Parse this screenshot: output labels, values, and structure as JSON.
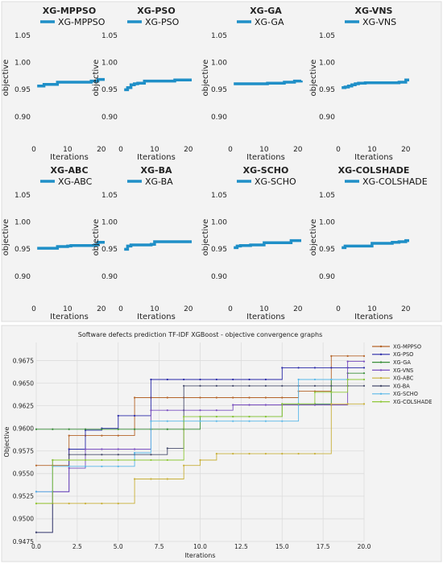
{
  "chart_data": [
    {
      "type": "line",
      "title": "XG-MPPSO",
      "xlabel": "Iterations",
      "ylabel": "objective",
      "xlim": [
        0,
        21
      ],
      "ylim": [
        0.85,
        1.07
      ],
      "xticks": [
        "0",
        "10",
        "20"
      ],
      "yticks": [
        "1.05",
        "1.00",
        "0.95",
        "0.90"
      ],
      "series": [
        {
          "name": "XG-MPPSO",
          "color": "#1f8fc7",
          "x": [
            1,
            2,
            3,
            4,
            5,
            6,
            7,
            8,
            9,
            10,
            11,
            12,
            13,
            14,
            15,
            16,
            17,
            18,
            19,
            20,
            21
          ],
          "y": [
            0.956,
            0.956,
            0.959,
            0.959,
            0.959,
            0.959,
            0.963,
            0.963,
            0.963,
            0.963,
            0.963,
            0.963,
            0.963,
            0.963,
            0.963,
            0.963,
            0.965,
            0.965,
            0.968,
            0.968,
            0.968
          ]
        }
      ]
    },
    {
      "type": "line",
      "title": "XG-PSO",
      "xlabel": "Iterations",
      "ylabel": "objective",
      "xlim": [
        0,
        21
      ],
      "ylim": [
        0.85,
        1.07
      ],
      "xticks": [
        "0",
        "10",
        "20"
      ],
      "yticks": [
        "1.05",
        "1.00",
        "0.95",
        "0.90"
      ],
      "series": [
        {
          "name": "XG-PSO",
          "color": "#1f8fc7",
          "x": [
            1,
            2,
            3,
            4,
            5,
            6,
            7,
            8,
            9,
            10,
            11,
            12,
            13,
            14,
            15,
            16,
            17,
            18,
            19,
            20,
            21
          ],
          "y": [
            0.949,
            0.953,
            0.958,
            0.96,
            0.961,
            0.961,
            0.965,
            0.965,
            0.965,
            0.965,
            0.965,
            0.965,
            0.965,
            0.965,
            0.965,
            0.967,
            0.967,
            0.967,
            0.967,
            0.967,
            0.967
          ]
        }
      ]
    },
    {
      "type": "line",
      "title": "XG-GA",
      "xlabel": "Iterations",
      "ylabel": "objective",
      "xlim": [
        0,
        21
      ],
      "ylim": [
        0.85,
        1.07
      ],
      "xticks": [
        "0",
        "10",
        "20"
      ],
      "yticks": [
        "1.05",
        "1.00",
        "0.95",
        "0.90"
      ],
      "series": [
        {
          "name": "XG-GA",
          "color": "#1f8fc7",
          "x": [
            1,
            2,
            3,
            4,
            5,
            6,
            7,
            8,
            9,
            10,
            11,
            12,
            13,
            14,
            15,
            16,
            17,
            18,
            19,
            20,
            21
          ],
          "y": [
            0.96,
            0.96,
            0.96,
            0.96,
            0.96,
            0.96,
            0.96,
            0.96,
            0.96,
            0.96,
            0.961,
            0.961,
            0.961,
            0.961,
            0.961,
            0.963,
            0.963,
            0.963,
            0.965,
            0.965,
            0.966
          ]
        }
      ]
    },
    {
      "type": "line",
      "title": "XG-VNS",
      "xlabel": "Iterations",
      "ylabel": "objective",
      "xlim": [
        0,
        21
      ],
      "ylim": [
        0.85,
        1.07
      ],
      "xticks": [
        "0",
        "10",
        "20"
      ],
      "yticks": [
        "1.05",
        "1.00",
        "0.95",
        "0.90"
      ],
      "series": [
        {
          "name": "XG-VNS",
          "color": "#1f8fc7",
          "x": [
            1,
            2,
            3,
            4,
            5,
            6,
            7,
            8,
            9,
            10,
            11,
            12,
            13,
            14,
            15,
            16,
            17,
            18,
            19,
            20,
            21
          ],
          "y": [
            0.953,
            0.954,
            0.956,
            0.958,
            0.96,
            0.961,
            0.961,
            0.962,
            0.962,
            0.962,
            0.962,
            0.962,
            0.962,
            0.962,
            0.962,
            0.962,
            0.962,
            0.963,
            0.963,
            0.967,
            0.967
          ]
        }
      ]
    },
    {
      "type": "line",
      "title": "XG-ABC",
      "xlabel": "Iterations",
      "ylabel": "objective",
      "xlim": [
        0,
        21
      ],
      "ylim": [
        0.85,
        1.07
      ],
      "xticks": [
        "0",
        "10",
        "20"
      ],
      "yticks": [
        "1.05",
        "1.00",
        "0.95",
        "0.90"
      ],
      "series": [
        {
          "name": "XG-ABC",
          "color": "#1f8fc7",
          "x": [
            1,
            2,
            3,
            4,
            5,
            6,
            7,
            8,
            9,
            10,
            11,
            12,
            13,
            14,
            15,
            16,
            17,
            18,
            19,
            20,
            21
          ],
          "y": [
            0.951,
            0.951,
            0.951,
            0.951,
            0.951,
            0.951,
            0.954,
            0.954,
            0.954,
            0.955,
            0.956,
            0.956,
            0.956,
            0.956,
            0.956,
            0.956,
            0.956,
            0.957,
            0.962,
            0.962,
            0.962
          ]
        }
      ]
    },
    {
      "type": "line",
      "title": "XG-BA",
      "xlabel": "Iterations",
      "ylabel": "objective",
      "xlim": [
        0,
        21
      ],
      "ylim": [
        0.85,
        1.07
      ],
      "xticks": [
        "0",
        "10",
        "20"
      ],
      "yticks": [
        "1.05",
        "1.00",
        "0.95",
        "0.90"
      ],
      "series": [
        {
          "name": "XG-BA",
          "color": "#1f8fc7",
          "x": [
            1,
            2,
            3,
            4,
            5,
            6,
            7,
            8,
            9,
            10,
            11,
            12,
            13,
            14,
            15,
            16,
            17,
            18,
            19,
            20,
            21
          ],
          "y": [
            0.949,
            0.955,
            0.957,
            0.957,
            0.957,
            0.957,
            0.957,
            0.957,
            0.958,
            0.963,
            0.963,
            0.963,
            0.963,
            0.963,
            0.963,
            0.963,
            0.963,
            0.963,
            0.963,
            0.963,
            0.963
          ]
        }
      ]
    },
    {
      "type": "line",
      "title": "XG-SCHO",
      "xlabel": "Iterations",
      "ylabel": "objective",
      "xlim": [
        0,
        21
      ],
      "ylim": [
        0.85,
        1.07
      ],
      "xticks": [
        "0",
        "10",
        "20"
      ],
      "yticks": [
        "1.05",
        "1.00",
        "0.95",
        "0.90"
      ],
      "series": [
        {
          "name": "XG-SCHO",
          "color": "#1f8fc7",
          "x": [
            1,
            2,
            3,
            4,
            5,
            6,
            7,
            8,
            9,
            10,
            11,
            12,
            13,
            14,
            15,
            16,
            17,
            18,
            19,
            20,
            21
          ],
          "y": [
            0.952,
            0.955,
            0.956,
            0.956,
            0.956,
            0.957,
            0.957,
            0.957,
            0.957,
            0.961,
            0.961,
            0.961,
            0.961,
            0.961,
            0.961,
            0.961,
            0.961,
            0.965,
            0.965,
            0.965,
            0.965
          ]
        }
      ]
    },
    {
      "type": "line",
      "title": "XG-COLSHADE",
      "xlabel": "Iterations",
      "ylabel": "objective",
      "xlim": [
        0,
        21
      ],
      "ylim": [
        0.85,
        1.07
      ],
      "xticks": [
        "0",
        "10",
        "20"
      ],
      "yticks": [
        "1.05",
        "1.00",
        "0.95",
        "0.90"
      ],
      "series": [
        {
          "name": "XG-COLSHADE",
          "color": "#1f8fc7",
          "x": [
            1,
            2,
            3,
            4,
            5,
            6,
            7,
            8,
            9,
            10,
            11,
            12,
            13,
            14,
            15,
            16,
            17,
            18,
            19,
            20,
            21
          ],
          "y": [
            0.952,
            0.955,
            0.955,
            0.955,
            0.955,
            0.955,
            0.955,
            0.955,
            0.955,
            0.96,
            0.96,
            0.96,
            0.96,
            0.96,
            0.96,
            0.962,
            0.962,
            0.963,
            0.963,
            0.965,
            0.965
          ]
        }
      ]
    },
    {
      "type": "line",
      "title": "Software defects prediction TF-IDF XGBoost -  objective convergence graphs",
      "xlabel": "Iterations",
      "ylabel": "Objective",
      "xlim": [
        0,
        20
      ],
      "ylim": [
        0.9475,
        0.9695
      ],
      "xticks": [
        "0.0",
        "2.5",
        "5.0",
        "7.5",
        "10.0",
        "12.5",
        "15.0",
        "17.5",
        "20.0"
      ],
      "yticks": [
        "0.9675",
        "0.9650",
        "0.9625",
        "0.9600",
        "0.9575",
        "0.9550",
        "0.9525",
        "0.9500",
        "0.9475"
      ],
      "grid": true,
      "legend": "right",
      "series": [
        {
          "name": "XG-MPPSO",
          "color": "#b5652a",
          "x": [
            0,
            1,
            2,
            3,
            4,
            5,
            6,
            7,
            8,
            9,
            10,
            11,
            12,
            13,
            14,
            15,
            16,
            17,
            18,
            19,
            20
          ],
          "y": [
            0.9559,
            0.9559,
            0.9592,
            0.9592,
            0.9592,
            0.9592,
            0.9634,
            0.9634,
            0.9634,
            0.9634,
            0.9634,
            0.9634,
            0.9634,
            0.9634,
            0.9634,
            0.9634,
            0.9641,
            0.9641,
            0.968,
            0.968,
            0.968
          ]
        },
        {
          "name": "XG-PSO",
          "color": "#2a2aa8",
          "x": [
            0,
            1,
            2,
            3,
            4,
            5,
            6,
            7,
            8,
            9,
            10,
            11,
            12,
            13,
            14,
            15,
            16,
            17,
            18,
            19,
            20
          ],
          "y": [
            0.9485,
            0.953,
            0.9577,
            0.9598,
            0.96,
            0.9614,
            0.9614,
            0.9654,
            0.9654,
            0.9654,
            0.9654,
            0.9654,
            0.9654,
            0.9654,
            0.9654,
            0.9667,
            0.9667,
            0.9667,
            0.9667,
            0.9667,
            0.9667
          ]
        },
        {
          "name": "XG-GA",
          "color": "#3a8f3a",
          "x": [
            0,
            1,
            2,
            3,
            4,
            5,
            6,
            7,
            8,
            9,
            10,
            11,
            12,
            13,
            14,
            15,
            16,
            17,
            18,
            19,
            20
          ],
          "y": [
            0.9599,
            0.9599,
            0.9599,
            0.9599,
            0.9599,
            0.9599,
            0.9599,
            0.9599,
            0.9599,
            0.9599,
            0.9613,
            0.9613,
            0.9613,
            0.9613,
            0.9613,
            0.9627,
            0.9627,
            0.9627,
            0.9654,
            0.9661,
            0.9661
          ]
        },
        {
          "name": "XG-VNS",
          "color": "#7a4fc0",
          "x": [
            0,
            1,
            2,
            3,
            4,
            5,
            6,
            7,
            8,
            9,
            10,
            11,
            12,
            13,
            14,
            15,
            16,
            17,
            18,
            19,
            20
          ],
          "y": [
            0.953,
            0.953,
            0.9556,
            0.9577,
            0.9577,
            0.9577,
            0.9577,
            0.962,
            0.962,
            0.962,
            0.962,
            0.962,
            0.9626,
            0.9626,
            0.9626,
            0.9626,
            0.9626,
            0.9626,
            0.9626,
            0.9674,
            0.9674
          ]
        },
        {
          "name": "XG-ABC",
          "color": "#c8b03a",
          "x": [
            0,
            1,
            2,
            3,
            4,
            5,
            6,
            7,
            8,
            9,
            10,
            11,
            12,
            13,
            14,
            15,
            16,
            17,
            18,
            19,
            20
          ],
          "y": [
            0.9517,
            0.9517,
            0.9517,
            0.9517,
            0.9517,
            0.9517,
            0.9544,
            0.9544,
            0.9544,
            0.9559,
            0.9565,
            0.9572,
            0.9572,
            0.9572,
            0.9572,
            0.9572,
            0.9572,
            0.9572,
            0.9627,
            0.9627,
            0.9627
          ]
        },
        {
          "name": "XG-BA",
          "color": "#4a4f6e",
          "x": [
            0,
            1,
            2,
            3,
            4,
            5,
            6,
            7,
            8,
            9,
            10,
            11,
            12,
            13,
            14,
            15,
            16,
            17,
            18,
            19,
            20
          ],
          "y": [
            0.9485,
            0.9565,
            0.9571,
            0.9571,
            0.9571,
            0.9571,
            0.9571,
            0.9571,
            0.9578,
            0.9647,
            0.9647,
            0.9647,
            0.9647,
            0.9647,
            0.9647,
            0.9647,
            0.9647,
            0.9647,
            0.9647,
            0.9647,
            0.9647
          ]
        },
        {
          "name": "XG-SCHO",
          "color": "#5ab8e8",
          "x": [
            0,
            1,
            2,
            3,
            4,
            5,
            6,
            7,
            8,
            9,
            10,
            11,
            12,
            13,
            14,
            15,
            16,
            17,
            18,
            19,
            20
          ],
          "y": [
            0.953,
            0.9558,
            0.9558,
            0.9558,
            0.9558,
            0.9558,
            0.9573,
            0.9608,
            0.9608,
            0.9608,
            0.9608,
            0.9608,
            0.9608,
            0.9608,
            0.9608,
            0.9608,
            0.9654,
            0.9654,
            0.9654,
            0.9654,
            0.9654
          ]
        },
        {
          "name": "XG-COLSHADE",
          "color": "#8fc83a",
          "x": [
            0,
            1,
            2,
            3,
            4,
            5,
            6,
            7,
            8,
            9,
            10,
            11,
            12,
            13,
            14,
            15,
            16,
            17,
            18,
            19,
            20
          ],
          "y": [
            0.9517,
            0.9565,
            0.9565,
            0.9565,
            0.9565,
            0.9565,
            0.9565,
            0.9565,
            0.9565,
            0.9613,
            0.9613,
            0.9613,
            0.9613,
            0.9613,
            0.9613,
            0.9627,
            0.9627,
            0.964,
            0.964,
            0.9654,
            0.9654
          ]
        }
      ]
    }
  ]
}
